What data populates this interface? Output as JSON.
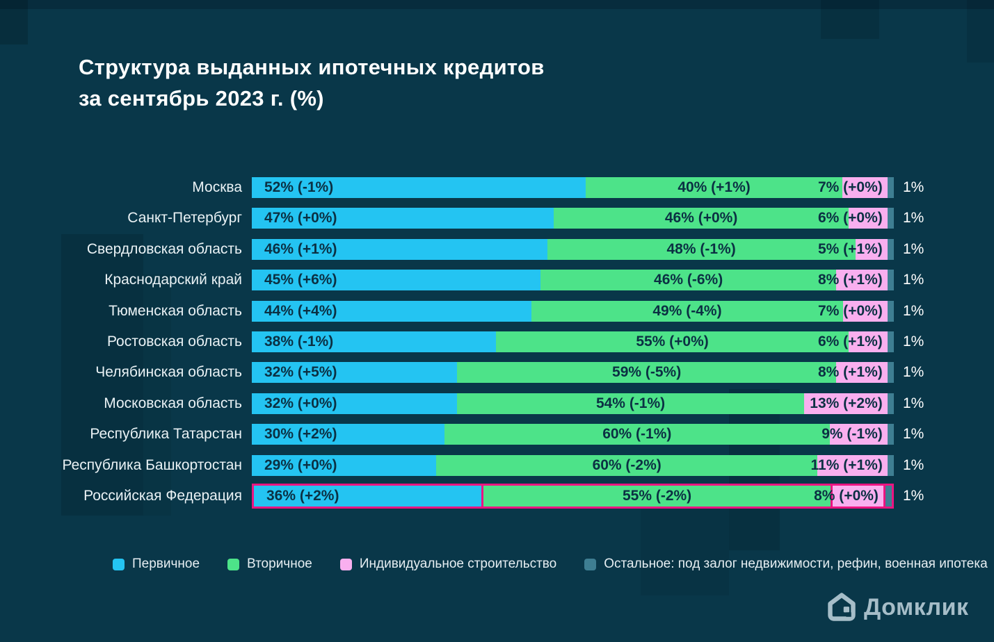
{
  "title": {
    "line1": "Структура выданных ипотечных кредитов",
    "line2": "за сентябрь 2023 г. (%)"
  },
  "logo": {
    "text": "Домклик"
  },
  "colors": {
    "background": "#093749",
    "bar_text": "#0B3043",
    "primary": "#24C4F2",
    "secondary": "#4DE389",
    "individual": "#F9AFEF",
    "other": "#3E7E92",
    "highlight_border": "#EC1481",
    "logo": "#A6BDC8"
  },
  "legend": [
    {
      "key": "primary",
      "label": "Первичное"
    },
    {
      "key": "secondary",
      "label": "Вторичное"
    },
    {
      "key": "individual",
      "label": "Индивидуальное строительство"
    },
    {
      "key": "other",
      "label": "Остальное: под залог недвижимости, рефин, военная ипотека"
    }
  ],
  "chart_data": {
    "type": "bar",
    "orientation": "horizontal",
    "stacked": true,
    "unit": "%",
    "xlim": [
      0,
      100
    ],
    "legend_position": "bottom",
    "title": "Структура выданных ипотечных кредитов за сентябрь 2023 г. (%)",
    "series": [
      "Первичное",
      "Вторичное",
      "Индивидуальное строительство",
      "Остальное: под залог недвижимости, рефин, военная ипотека"
    ],
    "rows": [
      {
        "region": "Москва",
        "highlight": false,
        "values": [
          52,
          40,
          7,
          1
        ],
        "labels": [
          "52% (-1%)",
          "40% (+1%)",
          "7% (+0%)",
          "1%"
        ]
      },
      {
        "region": "Санкт-Петербург",
        "highlight": false,
        "values": [
          47,
          46,
          6,
          1
        ],
        "labels": [
          "47% (+0%)",
          "46% (+0%)",
          "6% (+0%)",
          "1%"
        ]
      },
      {
        "region": "Свердловская область",
        "highlight": false,
        "values": [
          46,
          48,
          5,
          1
        ],
        "labels": [
          "46% (+1%)",
          "48% (-1%)",
          "5% (+1%)",
          "1%"
        ]
      },
      {
        "region": "Краснодарский край",
        "highlight": false,
        "values": [
          45,
          46,
          8,
          1
        ],
        "labels": [
          "45% (+6%)",
          "46% (-6%)",
          "8% (+1%)",
          "1%"
        ]
      },
      {
        "region": "Тюменская область",
        "highlight": false,
        "values": [
          44,
          49,
          7,
          1
        ],
        "labels": [
          "44% (+4%)",
          "49% (-4%)",
          "7% (+0%)",
          "1%"
        ]
      },
      {
        "region": "Ростовская область",
        "highlight": false,
        "values": [
          38,
          55,
          6,
          1
        ],
        "labels": [
          "38% (-1%)",
          "55% (+0%)",
          "6% (+1%)",
          "1%"
        ]
      },
      {
        "region": "Челябинская область",
        "highlight": false,
        "values": [
          32,
          59,
          8,
          1
        ],
        "labels": [
          "32% (+5%)",
          "59% (-5%)",
          "8% (+1%)",
          "1%"
        ]
      },
      {
        "region": "Московская область",
        "highlight": false,
        "values": [
          32,
          54,
          13,
          1
        ],
        "labels": [
          "32% (+0%)",
          "54% (-1%)",
          "13% (+2%)",
          "1%"
        ]
      },
      {
        "region": "Республика Татарстан",
        "highlight": false,
        "values": [
          30,
          60,
          9,
          1
        ],
        "labels": [
          "30% (+2%)",
          "60% (-1%)",
          "9% (-1%)",
          "1%"
        ]
      },
      {
        "region": "Республика Башкортостан",
        "highlight": false,
        "values": [
          29,
          60,
          11,
          1
        ],
        "labels": [
          "29% (+0%)",
          "60% (-2%)",
          "11% (+1%)",
          "1%"
        ]
      },
      {
        "region": "Российская Федерация",
        "highlight": true,
        "values": [
          36,
          55,
          8,
          1
        ],
        "labels": [
          "36% (+2%)",
          "55% (-2%)",
          "8% (+0%)",
          "1%"
        ]
      }
    ]
  }
}
